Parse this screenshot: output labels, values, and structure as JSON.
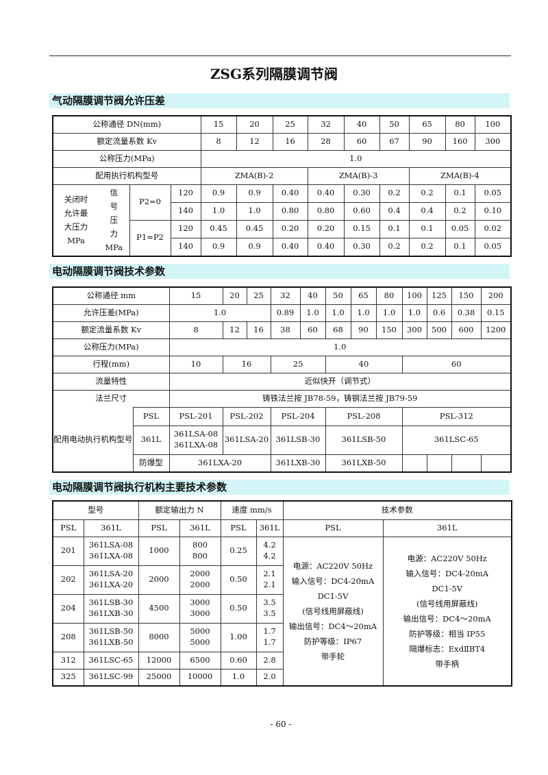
{
  "title": "ZSG系列隔膜调节阀",
  "page_number": "- 60 -",
  "s1": {
    "heading": "气动隔膜调节阀允许压差",
    "dn_label": "公称通径 DN(mm)",
    "dn": [
      "15",
      "20",
      "25",
      "32",
      "40",
      "50",
      "65",
      "80",
      "100"
    ],
    "kv_label": "额定流量系数 Kv",
    "kv": [
      "8",
      "12",
      "16",
      "28",
      "60",
      "67",
      "90",
      "160",
      "300"
    ],
    "pn_label": "公称压力(MPa)",
    "pn": "1.0",
    "act_label": "配用执行机构型号",
    "actuators": [
      "ZMA(B)-2",
      "ZMA(B)-3",
      "ZMA(B)-4"
    ],
    "group_label": [
      "关闭时",
      "允许最",
      "大压力",
      "MPa"
    ],
    "signal_label": [
      "信",
      "号",
      "压",
      "力"
    ],
    "signal_unit": "MPa",
    "cond": [
      {
        "label": "P2=0",
        "rows": [
          {
            "sig": "120",
            "values": [
              "0.9",
              "0.9",
              "0.40",
              "0.40",
              "0.30",
              "0.2",
              "0.2",
              "0.1",
              "0.05"
            ]
          },
          {
            "sig": "140",
            "values": [
              "1.0",
              "1.0",
              "0.80",
              "0.80",
              "0.60",
              "0.4",
              "0.4",
              "0.2",
              "0.10"
            ]
          }
        ]
      },
      {
        "label": "P1=P2",
        "rows": [
          {
            "sig": "120",
            "values": [
              "0.45",
              "0.45",
              "0.20",
              "0.20",
              "0.15",
              "0.1",
              "0.1",
              "0.05",
              "0.02"
            ]
          },
          {
            "sig": "140",
            "values": [
              "0.9",
              "0.9",
              "0.40",
              "0.40",
              "0.30",
              "0.2",
              "0.2",
              "0.1",
              "0.05"
            ]
          }
        ]
      }
    ]
  },
  "s2": {
    "heading": "电动隔膜调节阀技术参数",
    "dn_label": "公称通径 mm",
    "dn": [
      "15",
      "20",
      "25",
      "32",
      "40",
      "50",
      "65",
      "80",
      "100",
      "125",
      "150",
      "200"
    ],
    "dp_label": "允许压差(MPa)",
    "dp": [
      "1.0",
      "0.89",
      "1.0",
      "1.0",
      "1.0",
      "1.0",
      "1.0",
      "0.6",
      "0.38",
      "0.15"
    ],
    "kv_label": "额定流量系数 Kv",
    "kv": [
      "8",
      "12",
      "16",
      "38",
      "60",
      "68",
      "90",
      "150",
      "300",
      "500",
      "600",
      "1200"
    ],
    "pn_label": "公称压力(MPa)",
    "pn": "1.0",
    "stroke_label": "行程(mm)",
    "stroke": [
      "10",
      "16",
      "25",
      "40",
      "60"
    ],
    "flow_label": "流量特性",
    "flow": "近似快开（调节式）",
    "flange_label": "法兰尺寸",
    "flange": "铸铁法兰按 JB78-59，铸钢法兰按 JB79-59",
    "act_label": "配用电动执行机构型号",
    "psl_label": "PSL",
    "psl": [
      "PSL-201",
      "PSL-202",
      "PSL-204",
      "PSL-208",
      "PSL-312"
    ],
    "l361_label": "361L",
    "l361": [
      "361LSA-08",
      "361LXA-08",
      "361LSA-20",
      "361LSB-30",
      "361LSB-50",
      "361LSC-65"
    ],
    "ex_label": "防爆型",
    "ex": [
      "361LXA-20",
      "361LXB-30",
      "361LXB-50"
    ]
  },
  "s3": {
    "heading": "电动隔膜调节阀执行机构主要技术参数",
    "h_model": "型号",
    "h_force": "额定输出力 N",
    "h_speed": "速度 mm/s",
    "h_tech": "技术参数",
    "sub": [
      "PSL",
      "361L",
      "PSL",
      "361L",
      "PSL",
      "361L",
      "PSL",
      "361L"
    ],
    "rows": [
      {
        "psl": "201",
        "m": [
          "361LSA-08",
          "361LXA-08"
        ],
        "fp": "1000",
        "fl": [
          "800",
          "800"
        ],
        "sp": "0.25",
        "sl": [
          "4.2",
          "4.2"
        ]
      },
      {
        "psl": "202",
        "m": [
          "361LSA-20",
          "361LXA-20"
        ],
        "fp": "2000",
        "fl": [
          "2000",
          "2000"
        ],
        "sp": "0.50",
        "sl": [
          "2.1",
          "2.1"
        ]
      },
      {
        "psl": "204",
        "m": [
          "361LSB-30",
          "361LXB-30"
        ],
        "fp": "4500",
        "fl": [
          "3000",
          "3000"
        ],
        "sp": "0.50",
        "sl": [
          "3.5",
          "3.5"
        ]
      },
      {
        "psl": "208",
        "m": [
          "361LSB-50",
          "361LXB-50"
        ],
        "fp": "8000",
        "fl": [
          "5000",
          "5000"
        ],
        "sp": "1.00",
        "sl": [
          "1.7",
          "1.7"
        ]
      },
      {
        "psl": "312",
        "m": [
          "361LSC-65"
        ],
        "fp": "12000",
        "fl": [
          "6500"
        ],
        "sp": "0.60",
        "sl": [
          "2.8"
        ]
      },
      {
        "psl": "325",
        "m": [
          "361LSC-99"
        ],
        "fp": "25000",
        "fl": [
          "10000"
        ],
        "sp": "1.0",
        "sl": [
          "2.0"
        ]
      }
    ],
    "tech_psl": [
      "电源：AC220V 50Hz",
      "输入信号：DC4-20mA",
      "DC1-5V",
      "(信号线用屏蔽线)",
      "输出信号：DC4～20mA",
      "防护等级：IP67",
      "带手轮"
    ],
    "tech_361l": [
      "电源：AC220V 50Hz",
      "输入信号：DC4-20mA",
      "DC1-5V",
      "(信号线用屏蔽线)",
      "输出信号：DC4～20mA",
      "防护等级：相当 IP55",
      "隔爆标志：ExdⅡBT4",
      "带手柄"
    ]
  }
}
